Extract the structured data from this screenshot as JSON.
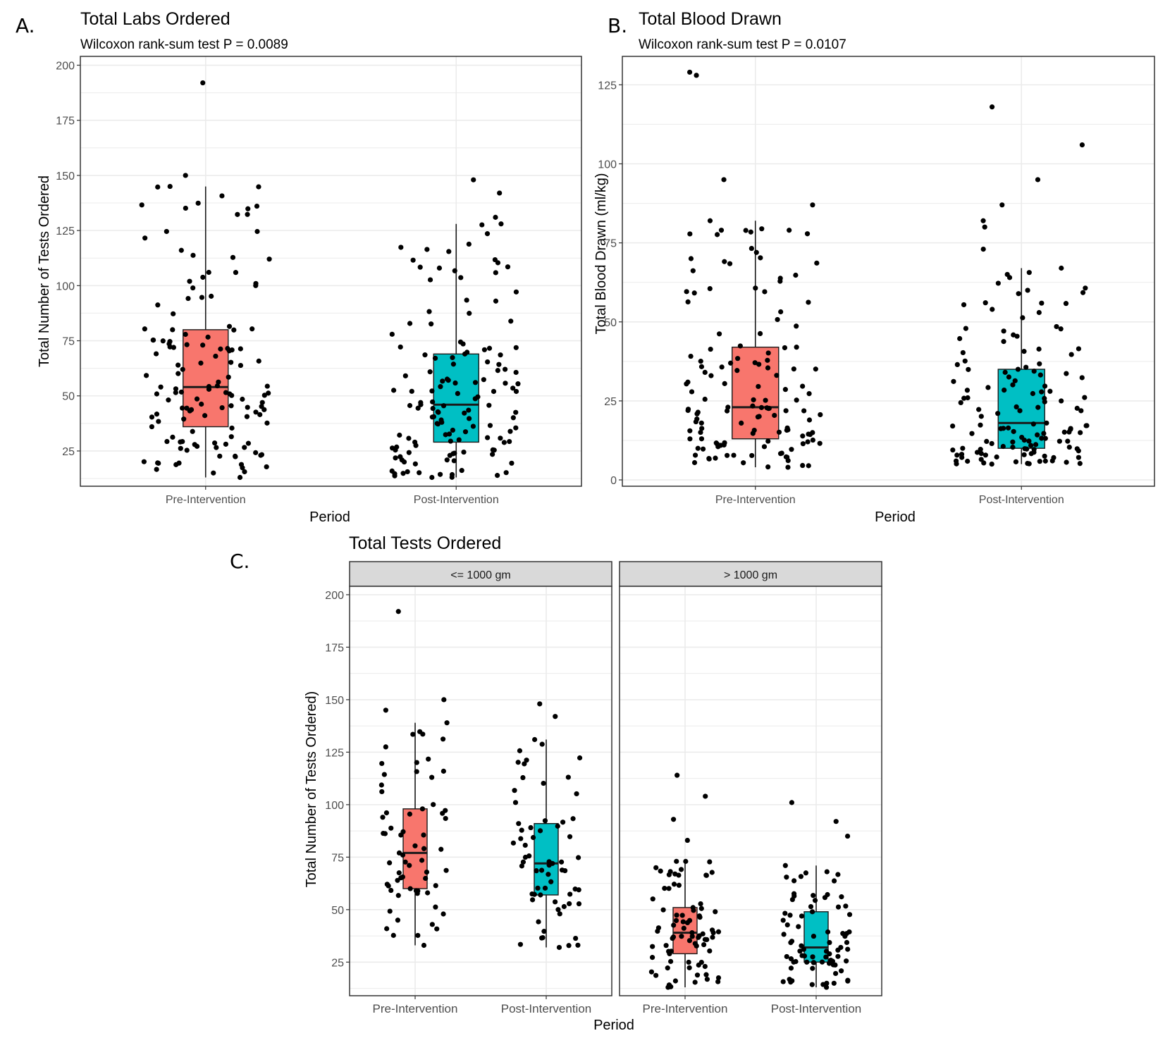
{
  "colors": {
    "pre": "#F8766D",
    "post": "#00BFC4",
    "grid": "#EBEBEB",
    "strip": "#D9D9D9"
  },
  "chart_data": [
    {
      "panel_letter": "A.",
      "type": "box",
      "title": "Total Labs Ordered",
      "subtitle": "Wilcoxon rank-sum test P = 0.0089",
      "xlabel": "Period",
      "ylabel": "Total Number of Tests Ordered",
      "ylim": [
        9,
        204
      ],
      "yticks": [
        25,
        50,
        75,
        100,
        125,
        150,
        175,
        200
      ],
      "grid": true,
      "categories": [
        "Pre-Intervention",
        "Post-Intervention"
      ],
      "series": [
        {
          "category": "Pre-Intervention",
          "min": 13,
          "q1": 36,
          "median": 54,
          "q3": 80,
          "max": 145,
          "outliers": [
            150,
            192
          ]
        },
        {
          "category": "Post-Intervention",
          "min": 13,
          "q1": 29,
          "median": 46,
          "q3": 69,
          "max": 128,
          "outliers": [
            131,
            142,
            148
          ]
        }
      ]
    },
    {
      "panel_letter": "B.",
      "type": "box",
      "title": "Total Blood Drawn",
      "subtitle": "Wilcoxon rank-sum test P = 0.0107",
      "xlabel": "Period",
      "ylabel": "Total Blood Drawn (ml/kg)",
      "ylim": [
        -2,
        134
      ],
      "yticks": [
        0,
        25,
        50,
        75,
        100,
        125
      ],
      "grid": true,
      "categories": [
        "Pre-Intervention",
        "Post-Intervention"
      ],
      "series": [
        {
          "category": "Pre-Intervention",
          "min": 4,
          "q1": 13,
          "median": 23,
          "q3": 42,
          "max": 82,
          "outliers": [
            87,
            95,
            128,
            129
          ]
        },
        {
          "category": "Post-Intervention",
          "min": 5,
          "q1": 10,
          "median": 18,
          "q3": 35,
          "max": 67,
          "outliers": [
            73,
            80,
            82,
            87,
            95,
            106,
            118
          ]
        }
      ]
    },
    {
      "panel_letter": "C.",
      "type": "box",
      "title": "Total Tests Ordered",
      "xlabel": "Period",
      "ylabel": "Total Number of Tests Ordered)",
      "ylim": [
        9,
        204
      ],
      "yticks": [
        25,
        50,
        75,
        100,
        125,
        150,
        175,
        200
      ],
      "grid": true,
      "categories": [
        "Pre-Intervention",
        "Post-Intervention"
      ],
      "facets": [
        {
          "label": "<= 1000 gm",
          "series": [
            {
              "category": "Pre-Intervention",
              "min": 33,
              "q1": 60,
              "median": 77,
              "q3": 98,
              "max": 139,
              "outliers": [
                145,
                150,
                192
              ]
            },
            {
              "category": "Post-Intervention",
              "min": 32,
              "q1": 57,
              "median": 72,
              "q3": 91,
              "max": 131,
              "outliers": [
                142,
                148
              ]
            }
          ]
        },
        {
          "label": "> 1000 gm",
          "series": [
            {
              "category": "Pre-Intervention",
              "min": 13,
              "q1": 29,
              "median": 39,
              "q3": 51,
              "max": 73,
              "outliers": [
                83,
                93,
                104,
                114
              ]
            },
            {
              "category": "Post-Intervention",
              "min": 13,
              "q1": 25,
              "median": 32,
              "q3": 49,
              "max": 71,
              "outliers": [
                85,
                92,
                101
              ]
            }
          ]
        }
      ]
    }
  ]
}
